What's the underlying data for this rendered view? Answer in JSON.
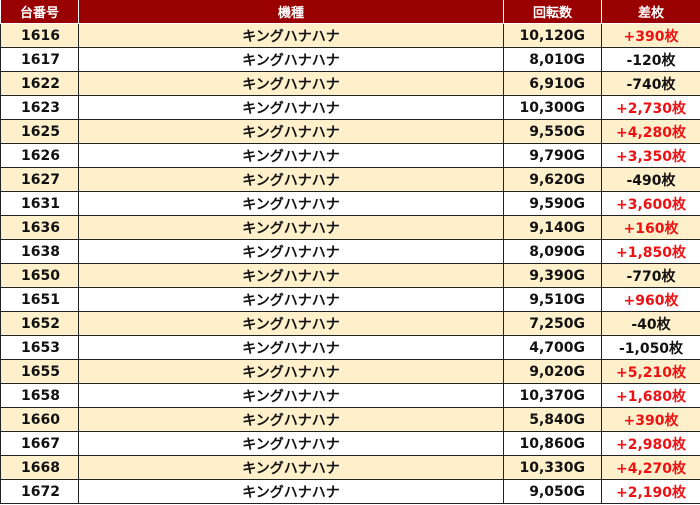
{
  "headers": [
    "台番号",
    "機種",
    "回転数",
    "差枚"
  ],
  "colors": {
    "header_bg": "#990000",
    "row_alt": "#fff0cc",
    "positive": "#ee1111"
  },
  "rows": [
    {
      "machine_no": "1616",
      "model": "キングハナハナ",
      "spins": "10,120G",
      "diff": "+390枚"
    },
    {
      "machine_no": "1617",
      "model": "キングハナハナ",
      "spins": "8,010G",
      "diff": "-120枚"
    },
    {
      "machine_no": "1622",
      "model": "キングハナハナ",
      "spins": "6,910G",
      "diff": "-740枚"
    },
    {
      "machine_no": "1623",
      "model": "キングハナハナ",
      "spins": "10,300G",
      "diff": "+2,730枚"
    },
    {
      "machine_no": "1625",
      "model": "キングハナハナ",
      "spins": "9,550G",
      "diff": "+4,280枚"
    },
    {
      "machine_no": "1626",
      "model": "キングハナハナ",
      "spins": "9,790G",
      "diff": "+3,350枚"
    },
    {
      "machine_no": "1627",
      "model": "キングハナハナ",
      "spins": "9,620G",
      "diff": "-490枚"
    },
    {
      "machine_no": "1631",
      "model": "キングハナハナ",
      "spins": "9,590G",
      "diff": "+3,600枚"
    },
    {
      "machine_no": "1636",
      "model": "キングハナハナ",
      "spins": "9,140G",
      "diff": "+160枚"
    },
    {
      "machine_no": "1638",
      "model": "キングハナハナ",
      "spins": "8,090G",
      "diff": "+1,850枚"
    },
    {
      "machine_no": "1650",
      "model": "キングハナハナ",
      "spins": "9,390G",
      "diff": "-770枚"
    },
    {
      "machine_no": "1651",
      "model": "キングハナハナ",
      "spins": "9,510G",
      "diff": "+960枚"
    },
    {
      "machine_no": "1652",
      "model": "キングハナハナ",
      "spins": "7,250G",
      "diff": "-40枚"
    },
    {
      "machine_no": "1653",
      "model": "キングハナハナ",
      "spins": "4,700G",
      "diff": "-1,050枚"
    },
    {
      "machine_no": "1655",
      "model": "キングハナハナ",
      "spins": "9,020G",
      "diff": "+5,210枚"
    },
    {
      "machine_no": "1658",
      "model": "キングハナハナ",
      "spins": "10,370G",
      "diff": "+1,680枚"
    },
    {
      "machine_no": "1660",
      "model": "キングハナハナ",
      "spins": "5,840G",
      "diff": "+390枚"
    },
    {
      "machine_no": "1667",
      "model": "キングハナハナ",
      "spins": "10,860G",
      "diff": "+2,980枚"
    },
    {
      "machine_no": "1668",
      "model": "キングハナハナ",
      "spins": "10,330G",
      "diff": "+4,270枚"
    },
    {
      "machine_no": "1672",
      "model": "キングハナハナ",
      "spins": "9,050G",
      "diff": "+2,190枚"
    }
  ]
}
